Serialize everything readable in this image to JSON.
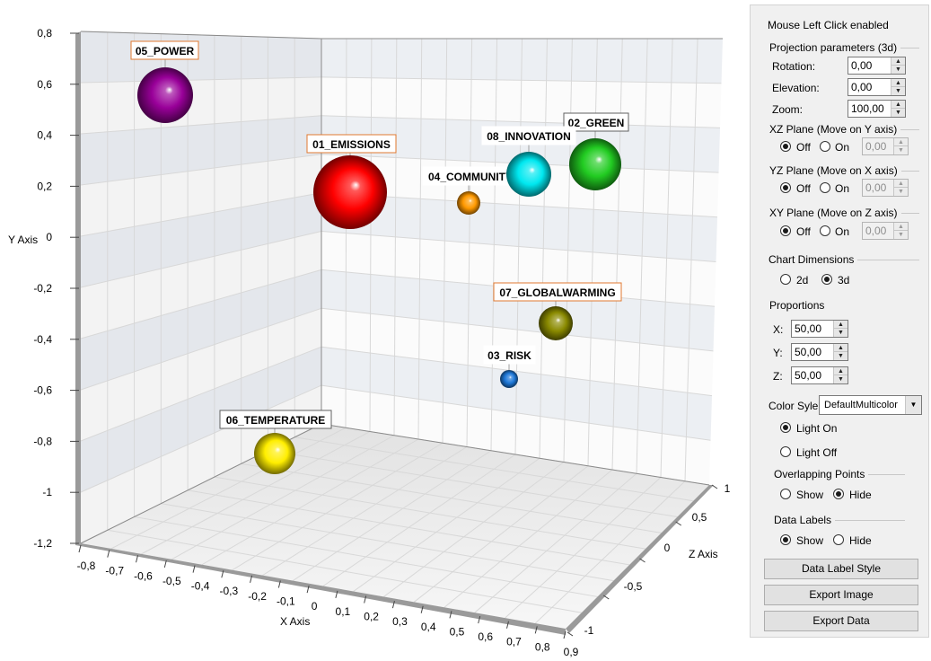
{
  "chart": {
    "y_axis_label": "Y Axis",
    "x_axis_label": "X Axis",
    "z_axis_label": "Z Axis",
    "y_ticks": [
      "0,8",
      "0,6",
      "0,4",
      "0,2",
      "0",
      "-0,2",
      "-0,4",
      "-0,6",
      "-0,8",
      "-1",
      "-1,2"
    ],
    "x_ticks": [
      "-0,8",
      "-0,7",
      "-0,6",
      "-0,5",
      "-0,4",
      "-0,3",
      "-0,2",
      "-0,1",
      "0",
      "0,1",
      "0,2",
      "0,3",
      "0,4",
      "0,5",
      "0,6",
      "0,7",
      "0,8",
      "0,9"
    ],
    "z_ticks": [
      "1",
      "0,5",
      "0",
      "-0,5",
      "-1"
    ]
  },
  "chart_data": {
    "type": "scatter",
    "subtype": "3d-bubble",
    "xlabel": "X Axis",
    "ylabel": "Y Axis",
    "zlabel": "Z Axis",
    "xlim": [
      -0.8,
      0.9
    ],
    "ylim": [
      -1.2,
      0.8
    ],
    "zlim": [
      -1,
      1
    ],
    "points": [
      {
        "label": "01_EMISSIONS",
        "color": "#ff0000",
        "size": 1.0
      },
      {
        "label": "02_GREEN",
        "color": "#22cc22",
        "size": 0.72
      },
      {
        "label": "03_RISK",
        "color": "#1e78d8",
        "size": 0.24
      },
      {
        "label": "04_COMMUNITY",
        "color": "#ff9900",
        "size": 0.33
      },
      {
        "label": "05_POWER",
        "color": "#990099",
        "size": 0.78
      },
      {
        "label": "06_TEMPERATURE",
        "color": "#ffee00",
        "size": 0.58
      },
      {
        "label": "07_GLOBALWARMING",
        "color": "#8a8a00",
        "size": 0.47
      },
      {
        "label": "08_INNOVATION",
        "color": "#00e8f0",
        "size": 0.63
      }
    ]
  },
  "panel": {
    "mouse_label": "Mouse Left Click enabled",
    "projection_title": "Projection parameters (3d)",
    "rotation_label": "Rotation:",
    "rotation_value": "0,00",
    "elevation_label": "Elevation:",
    "elevation_value": "0,00",
    "zoom_label": "Zoom:",
    "zoom_value": "100,00",
    "xz_title": "XZ Plane (Move on Y axis)",
    "yz_title": "YZ Plane (Move on X axis)",
    "xy_title": "XY Plane (Move on Z axis)",
    "off_label": "Off",
    "on_label": "On",
    "plane_value": "0,00",
    "dimensions_title": "Chart Dimensions",
    "dim_2d": "2d",
    "dim_3d": "3d",
    "proportions_title": "Proportions",
    "prop_x_label": "X:",
    "prop_x_value": "50,00",
    "prop_y_label": "Y:",
    "prop_y_value": "50,00",
    "prop_z_label": "Z:",
    "prop_z_value": "50,00",
    "color_style_label": "Color Syle",
    "color_style_value": "DefaultMulticolor",
    "light_on": "Light On",
    "light_off": "Light Off",
    "overlap_title": "Overlapping Points",
    "show_label": "Show",
    "hide_label": "Hide",
    "data_labels_title": "Data Labels",
    "data_label_style_btn": "Data Label Style",
    "export_image_btn": "Export Image",
    "export_data_btn": "Export Data"
  }
}
